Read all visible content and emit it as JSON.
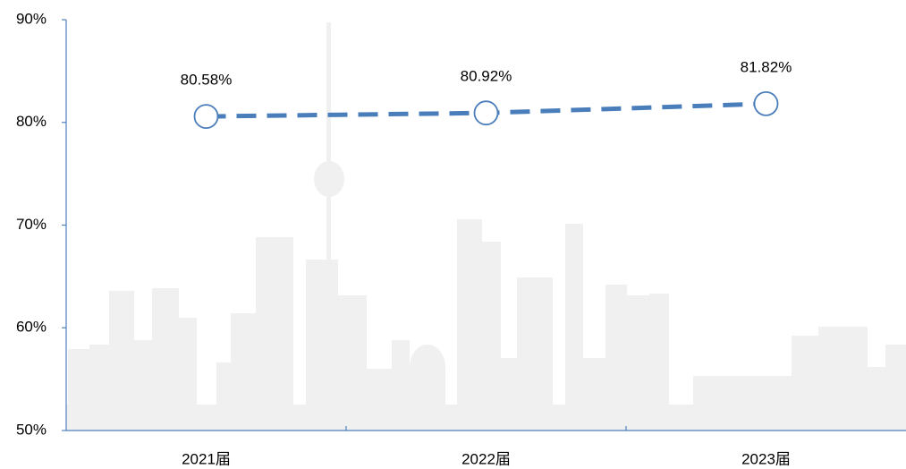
{
  "chart_data": {
    "type": "line",
    "categories": [
      "2021届",
      "2022届",
      "2023届"
    ],
    "series": [
      {
        "color": "#4a7ebb",
        "values": [
          80.58,
          80.92,
          81.82
        ],
        "value_labels": [
          "80.58%",
          "80.92%",
          "81.82%"
        ]
      }
    ],
    "ylim": [
      50,
      90
    ],
    "yticks": [
      {
        "value": 50,
        "label": "50%"
      },
      {
        "value": 60,
        "label": "60%"
      },
      {
        "value": 70,
        "label": "70%"
      },
      {
        "value": 80,
        "label": "80%"
      },
      {
        "value": 90,
        "label": "90%"
      }
    ]
  }
}
